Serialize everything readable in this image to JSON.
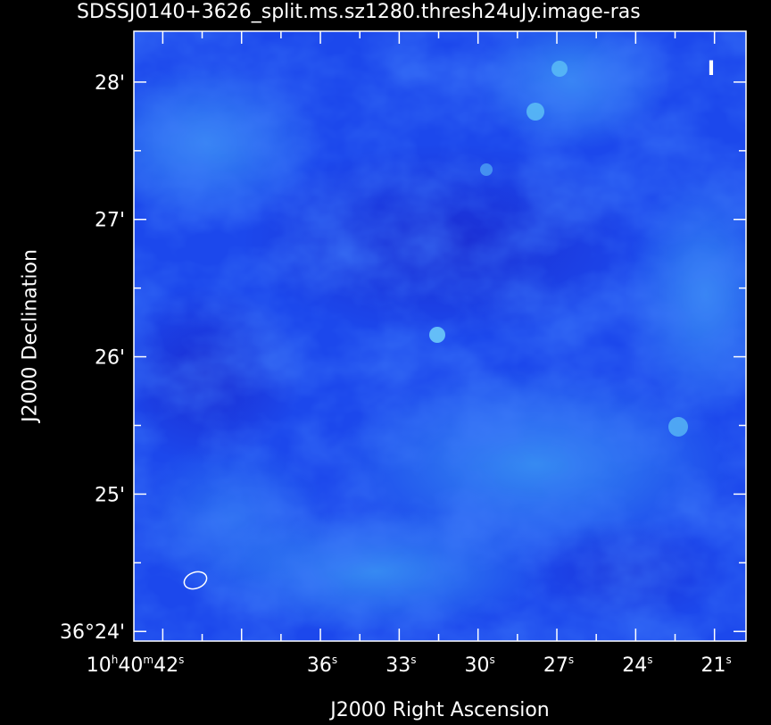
{
  "chart_data": {
    "type": "heatmap",
    "title": "SDSSJ0140+3626_split.ms.sz1280.thresh24uJy.image-ras",
    "xlabel": "J2000 Right Ascension",
    "ylabel": "J2000 Declination",
    "colormap": {
      "dark": "#1a22c8",
      "mid": "#1c4ef2",
      "light": "#3fa0f4"
    },
    "stokes_label": "I",
    "grid": false,
    "x_ticks": [
      {
        "h": "10",
        "m": "40",
        "s": "42",
        "sec": 42,
        "label_full": true
      },
      {
        "s": "36",
        "sec": 36
      },
      {
        "s": "33",
        "sec": 33
      },
      {
        "s": "30",
        "sec": 30
      },
      {
        "s": "27",
        "sec": 27
      },
      {
        "s": "24",
        "sec": 24
      },
      {
        "s": "21",
        "sec": 21
      }
    ],
    "y_ticks": [
      {
        "label": "28'",
        "arcmin": 28
      },
      {
        "label": "27'",
        "arcmin": 27
      },
      {
        "label": "26'",
        "arcmin": 26
      },
      {
        "label": "25'",
        "arcmin": 25
      },
      {
        "label": "36°24'",
        "arcmin": 24
      }
    ],
    "xlim_sec": [
      43.1,
      19.8
    ],
    "ylim_arcmin": [
      23.93,
      28.37
    ],
    "beam": "ellipse"
  }
}
